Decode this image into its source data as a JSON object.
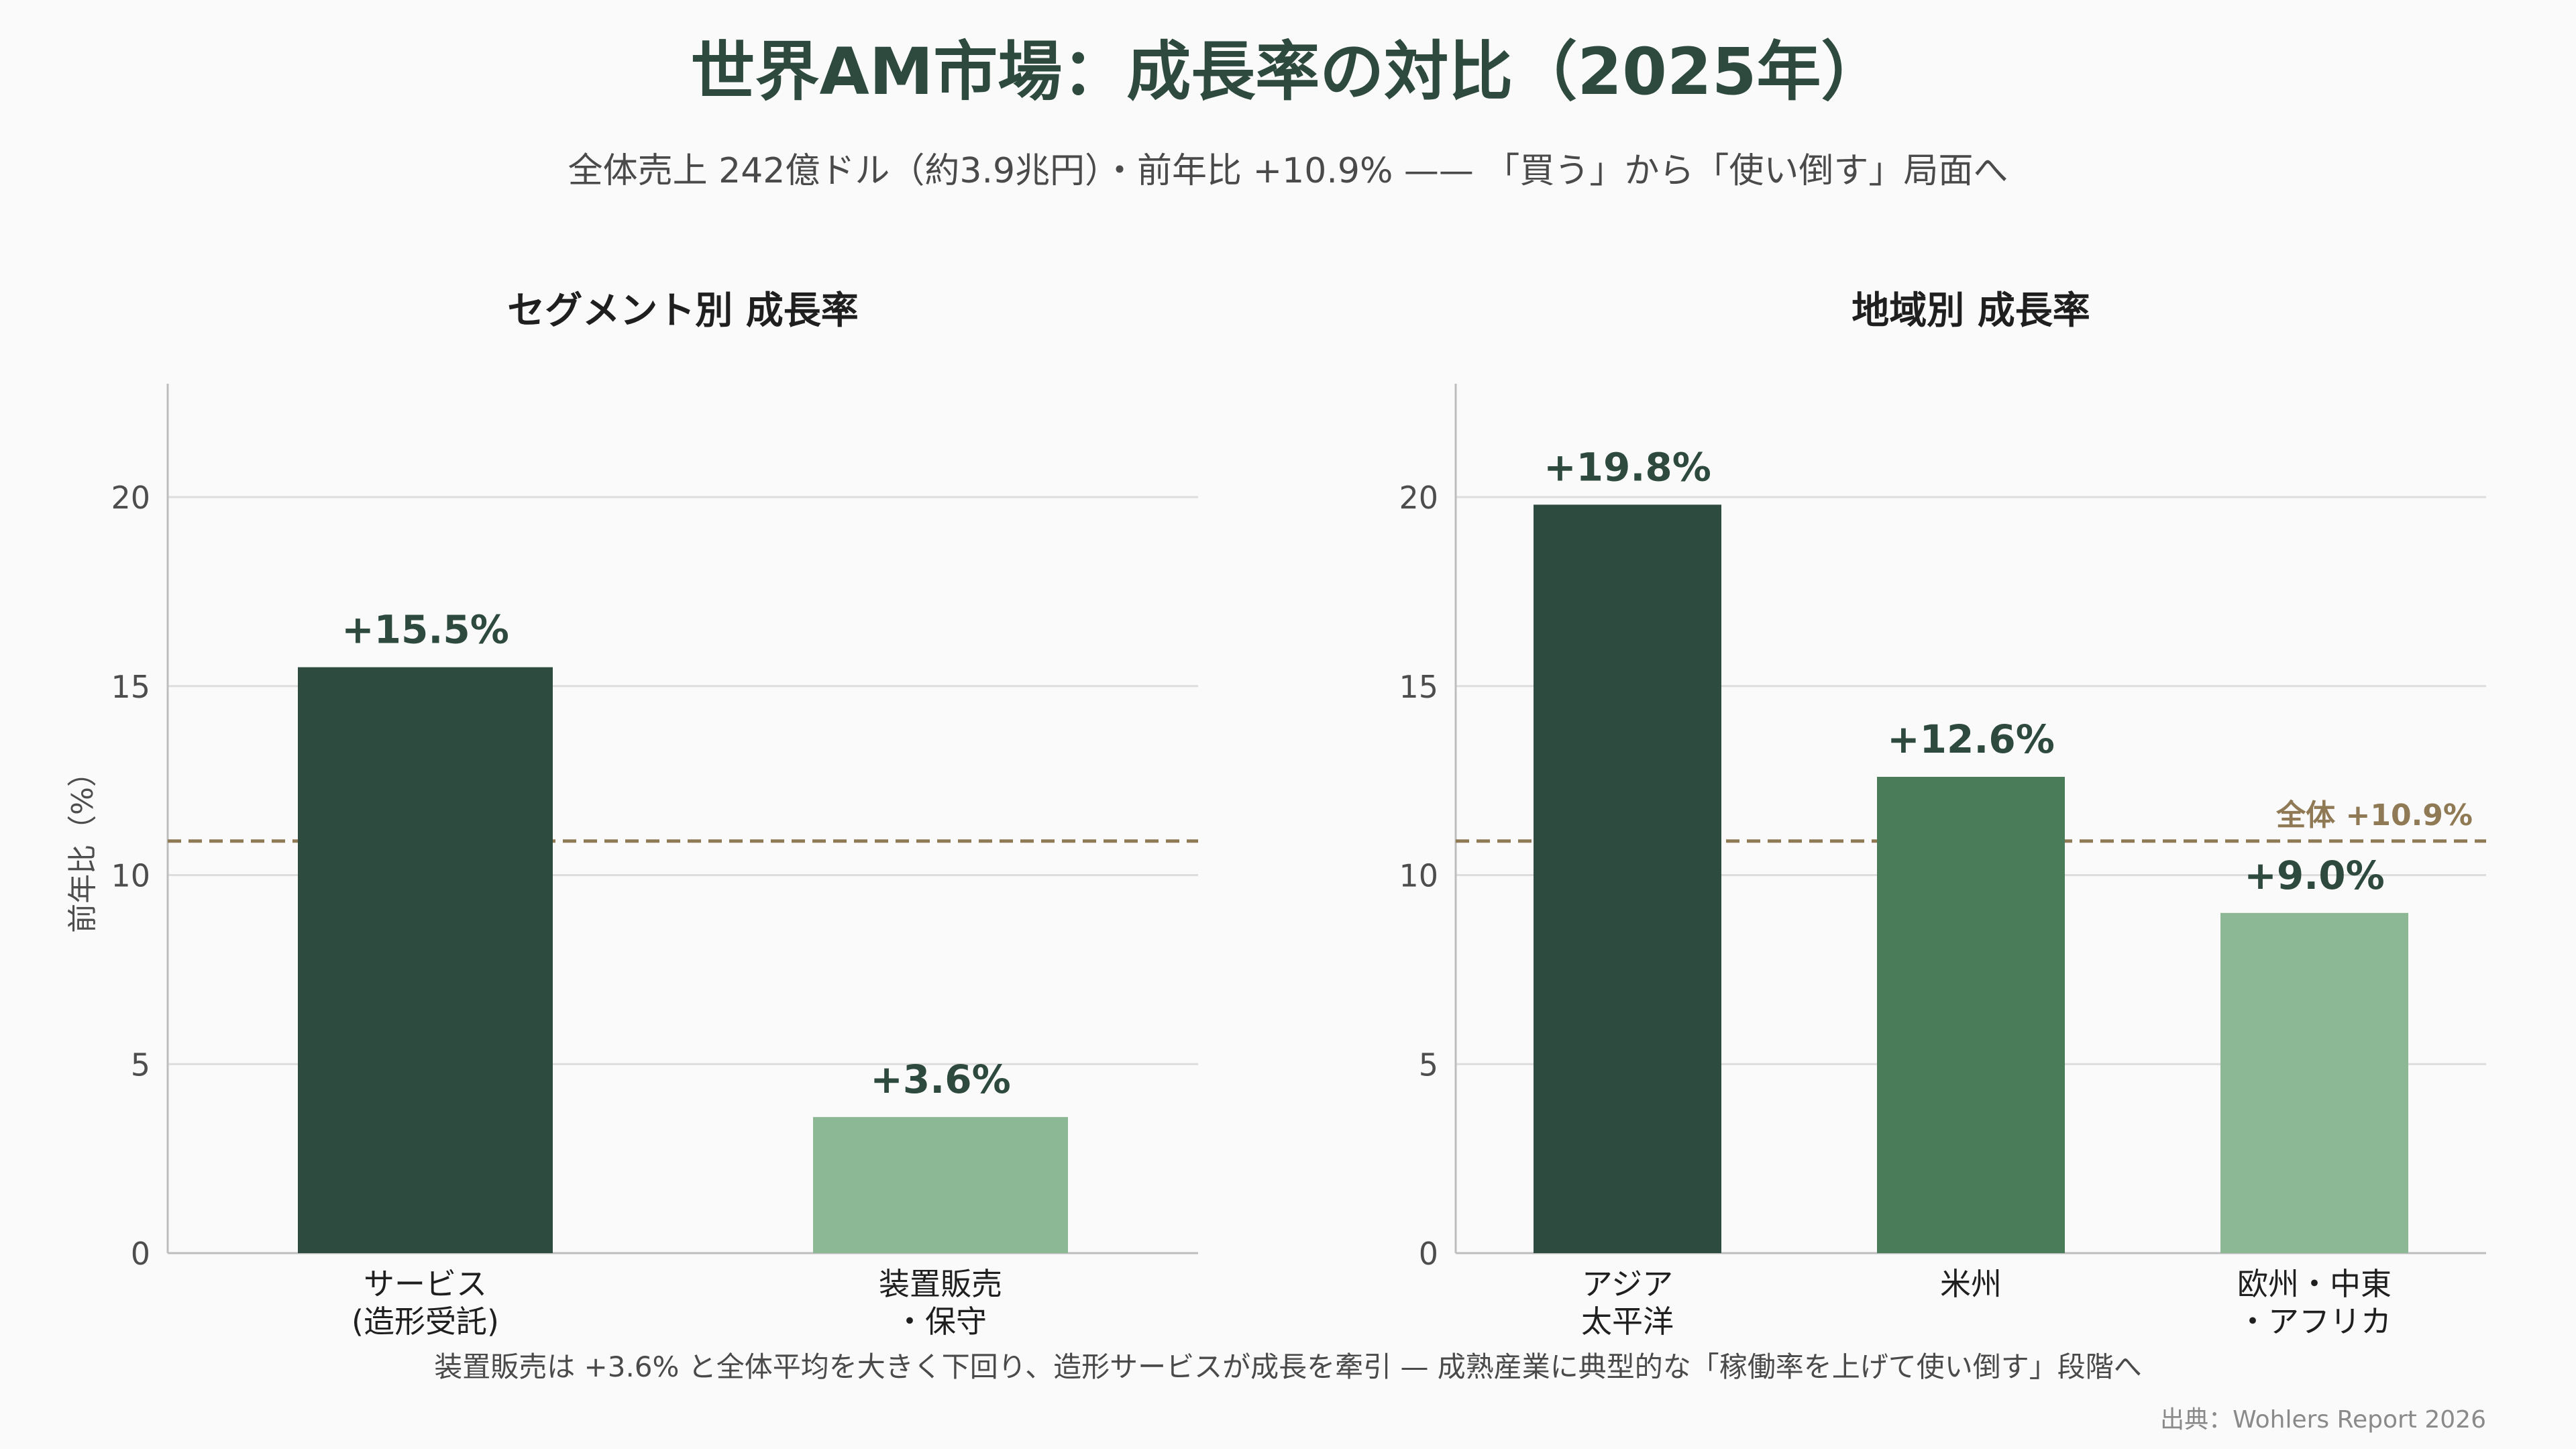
{
  "title": "世界AM市場：成長率の対比（2025年）",
  "subtitle": "全体売上 242億ドル（約3.9兆円）・前年比 +10.9% —— 「買う」から「使い倒す」局面へ",
  "footnote": "装置販売は +3.6% と全体平均を大きく下回り、造形サービスが成長を牽引 — 成熟産業に典型的な「稼働率を上げて使い倒す」段階へ",
  "source": "出典：Wohlers Report 2026",
  "colors": {
    "dark": "#2e4b3f",
    "mid": "#4a7c59",
    "light": "#8cb896",
    "reference": "#8f7a55",
    "text": "#2e4a3e",
    "axis_text": "#4d4d4d",
    "grid": "#dddddd"
  },
  "chart_data": [
    {
      "type": "bar",
      "title": "セグメント別 成長率",
      "ylabel": "前年比（%）",
      "ylim": [
        0,
        23
      ],
      "yticks": [
        0,
        5,
        10,
        15,
        20
      ],
      "grid": true,
      "categories": [
        [
          "サービス",
          "(造形受託)"
        ],
        [
          "装置販売",
          "・保守"
        ]
      ],
      "values": [
        15.5,
        3.6
      ],
      "value_labels": [
        "+15.5%",
        "+3.6%"
      ],
      "bar_colors": [
        "#2e4b3f",
        "#8cb896"
      ],
      "reference_line": {
        "value": 10.9,
        "label": ""
      }
    },
    {
      "type": "bar",
      "title": "地域別 成長率",
      "ylabel": "",
      "ylim": [
        0,
        23
      ],
      "yticks": [
        0,
        5,
        10,
        15,
        20
      ],
      "grid": true,
      "categories": [
        [
          "アジア",
          "太平洋"
        ],
        [
          "米州"
        ],
        [
          "欧州・中東",
          "・アフリカ"
        ]
      ],
      "values": [
        19.8,
        12.6,
        9.0
      ],
      "value_labels": [
        "+19.8%",
        "+12.6%",
        "+9.0%"
      ],
      "bar_colors": [
        "#2e4b3f",
        "#4a7c59",
        "#8cb896"
      ],
      "reference_line": {
        "value": 10.9,
        "label": "全体 +10.9%"
      }
    }
  ]
}
